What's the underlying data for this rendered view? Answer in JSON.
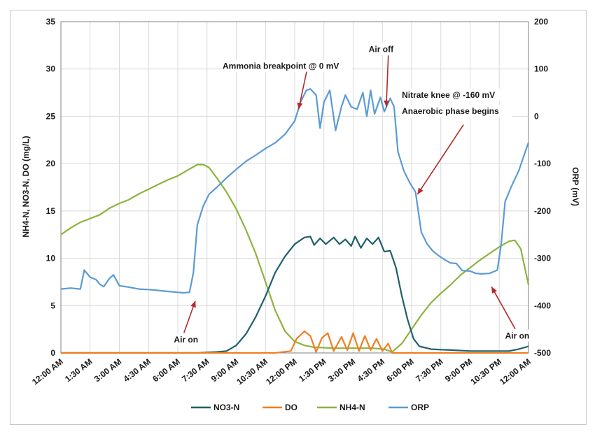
{
  "chart_data": {
    "type": "line",
    "x_unit": "hours",
    "x_ticks": [
      "12:00 AM",
      "1:30 AM",
      "3:00 AM",
      "4:30 AM",
      "6:00 AM",
      "7:30 AM",
      "9:00 AM",
      "10:30 AM",
      "12:00 PM",
      "1:30 PM",
      "3:00 PM",
      "4:30 PM",
      "6:00 PM",
      "7:30 PM",
      "9:00 PM",
      "10:30 PM",
      "12:00 AM"
    ],
    "y_left": {
      "label": "NH4-N, NO3-N, DO (mg/L)",
      "lim": [
        0,
        35
      ],
      "ticks": [
        "0",
        "5",
        "10",
        "15",
        "20",
        "25",
        "30",
        "35"
      ]
    },
    "y_right": {
      "label": "ORP (mV)",
      "lim": [
        -500,
        200
      ],
      "ticks": [
        "-500",
        "-400",
        "-300",
        "-200",
        "-100",
        "0",
        "100",
        "200"
      ]
    },
    "grid": true,
    "legend_position": "bottom",
    "series": [
      {
        "name": "NO3-N",
        "axis": "left",
        "color": "#1f5f6b",
        "points": [
          [
            0,
            0
          ],
          [
            7,
            0
          ],
          [
            8,
            0.1
          ],
          [
            8.5,
            0.2
          ],
          [
            9,
            0.8
          ],
          [
            9.5,
            2
          ],
          [
            10,
            3.8
          ],
          [
            10.5,
            6
          ],
          [
            11,
            8.5
          ],
          [
            11.5,
            10.2
          ],
          [
            12,
            11.5
          ],
          [
            12.5,
            12.2
          ],
          [
            12.8,
            12.3
          ],
          [
            13,
            11.4
          ],
          [
            13.3,
            12.1
          ],
          [
            13.6,
            11.5
          ],
          [
            14,
            12.2
          ],
          [
            14.3,
            11.5
          ],
          [
            14.6,
            12
          ],
          [
            14.9,
            11.3
          ],
          [
            15.1,
            12.3
          ],
          [
            15.4,
            11.1
          ],
          [
            15.7,
            12.1
          ],
          [
            16,
            11.5
          ],
          [
            16.3,
            12.2
          ],
          [
            16.6,
            10.7
          ],
          [
            16.9,
            10.8
          ],
          [
            17.2,
            9
          ],
          [
            17.5,
            6
          ],
          [
            17.8,
            3.5
          ],
          [
            18.1,
            1.5
          ],
          [
            18.4,
            0.7
          ],
          [
            19,
            0.4
          ],
          [
            20,
            0.3
          ],
          [
            21,
            0.2
          ],
          [
            22,
            0.2
          ],
          [
            23,
            0.2
          ],
          [
            23.5,
            0.4
          ],
          [
            24,
            0.7
          ]
        ]
      },
      {
        "name": "DO",
        "axis": "left",
        "color": "#f07f21",
        "points": [
          [
            0,
            0
          ],
          [
            11,
            0
          ],
          [
            11.8,
            0.2
          ],
          [
            12.1,
            1.5
          ],
          [
            12.5,
            2.3
          ],
          [
            12.8,
            1.8
          ],
          [
            13.1,
            0.1
          ],
          [
            13.4,
            1.6
          ],
          [
            13.7,
            2.1
          ],
          [
            14,
            0.2
          ],
          [
            14.4,
            1.7
          ],
          [
            14.7,
            0.3
          ],
          [
            15,
            2.1
          ],
          [
            15.3,
            0.2
          ],
          [
            15.6,
            1.8
          ],
          [
            15.9,
            0.3
          ],
          [
            16.2,
            1.5
          ],
          [
            16.5,
            0.2
          ],
          [
            16.8,
            1
          ],
          [
            17,
            0
          ],
          [
            24,
            0
          ]
        ]
      },
      {
        "name": "NH4-N",
        "axis": "left",
        "color": "#8db33f",
        "points": [
          [
            0,
            12.5
          ],
          [
            0.5,
            13.2
          ],
          [
            1,
            13.8
          ],
          [
            1.5,
            14.2
          ],
          [
            2,
            14.6
          ],
          [
            2.5,
            15.3
          ],
          [
            3,
            15.8
          ],
          [
            3.5,
            16.2
          ],
          [
            4,
            16.8
          ],
          [
            4.5,
            17.3
          ],
          [
            5,
            17.8
          ],
          [
            5.5,
            18.3
          ],
          [
            6,
            18.7
          ],
          [
            6.5,
            19.3
          ],
          [
            7,
            19.9
          ],
          [
            7.3,
            19.9
          ],
          [
            7.6,
            19.6
          ],
          [
            8,
            18.5
          ],
          [
            8.5,
            17
          ],
          [
            9,
            15.2
          ],
          [
            9.5,
            13
          ],
          [
            10,
            10.5
          ],
          [
            10.5,
            7.5
          ],
          [
            11,
            4.5
          ],
          [
            11.5,
            2.3
          ],
          [
            12,
            1.2
          ],
          [
            12.5,
            0.8
          ],
          [
            13,
            0.6
          ],
          [
            14,
            0.5
          ],
          [
            15,
            0.5
          ],
          [
            16,
            0.5
          ],
          [
            16.6,
            0.4
          ],
          [
            17,
            0.1
          ],
          [
            17.5,
            1
          ],
          [
            18,
            2.5
          ],
          [
            18.5,
            4
          ],
          [
            19,
            5.3
          ],
          [
            19.5,
            6.3
          ],
          [
            20,
            7.2
          ],
          [
            20.5,
            8.2
          ],
          [
            21,
            9
          ],
          [
            21.5,
            9.8
          ],
          [
            22,
            10.5
          ],
          [
            22.5,
            11.2
          ],
          [
            23,
            11.8
          ],
          [
            23.3,
            11.9
          ],
          [
            23.6,
            11
          ],
          [
            24,
            7.2
          ]
        ]
      },
      {
        "name": "ORP",
        "axis": "right",
        "color": "#5b9bd5",
        "points": [
          [
            0,
            -365
          ],
          [
            0.5,
            -363
          ],
          [
            1,
            -365
          ],
          [
            1.2,
            -325
          ],
          [
            1.5,
            -340
          ],
          [
            1.8,
            -345
          ],
          [
            2,
            -355
          ],
          [
            2.2,
            -360
          ],
          [
            2.5,
            -342
          ],
          [
            2.7,
            -335
          ],
          [
            3,
            -358
          ],
          [
            3.5,
            -361
          ],
          [
            4,
            -365
          ],
          [
            4.5,
            -366
          ],
          [
            5,
            -368
          ],
          [
            5.5,
            -370
          ],
          [
            6,
            -372
          ],
          [
            6.3,
            -373
          ],
          [
            6.6,
            -372
          ],
          [
            6.8,
            -330
          ],
          [
            7,
            -230
          ],
          [
            7.3,
            -190
          ],
          [
            7.6,
            -165
          ],
          [
            8,
            -150
          ],
          [
            8.5,
            -130
          ],
          [
            9,
            -112
          ],
          [
            9.5,
            -95
          ],
          [
            10,
            -82
          ],
          [
            10.5,
            -68
          ],
          [
            11,
            -56
          ],
          [
            11.5,
            -38
          ],
          [
            12,
            -10
          ],
          [
            12.3,
            30
          ],
          [
            12.6,
            55
          ],
          [
            12.8,
            58
          ],
          [
            13.1,
            45
          ],
          [
            13.3,
            -25
          ],
          [
            13.5,
            30
          ],
          [
            13.8,
            55
          ],
          [
            14.1,
            -30
          ],
          [
            14.4,
            20
          ],
          [
            14.6,
            45
          ],
          [
            14.9,
            20
          ],
          [
            15.2,
            15
          ],
          [
            15.5,
            50
          ],
          [
            15.7,
            0
          ],
          [
            15.9,
            55
          ],
          [
            16.1,
            5
          ],
          [
            16.4,
            40
          ],
          [
            16.6,
            10
          ],
          [
            16.9,
            38
          ],
          [
            17.1,
            20
          ],
          [
            17.3,
            -75
          ],
          [
            17.6,
            -115
          ],
          [
            17.9,
            -140
          ],
          [
            18.2,
            -160
          ],
          [
            18.5,
            -245
          ],
          [
            18.8,
            -270
          ],
          [
            19.1,
            -285
          ],
          [
            19.4,
            -295
          ],
          [
            19.7,
            -303
          ],
          [
            20,
            -310
          ],
          [
            20.3,
            -311
          ],
          [
            20.6,
            -326
          ],
          [
            21,
            -327
          ],
          [
            21.3,
            -332
          ],
          [
            21.6,
            -333
          ],
          [
            22,
            -332
          ],
          [
            22.4,
            -325
          ],
          [
            22.6,
            -270
          ],
          [
            22.8,
            -180
          ],
          [
            23.1,
            -150
          ],
          [
            23.5,
            -115
          ],
          [
            24,
            -55
          ]
        ]
      }
    ],
    "annotations": [
      {
        "text": "Ammonia breakpoint @  0 mV",
        "x": 8.3,
        "y_right": 100,
        "arrow_to": [
          12.2,
          15
        ]
      },
      {
        "text": "Air off",
        "x": 15.8,
        "y_right": 136,
        "arrow_to": [
          16.7,
          20
        ]
      },
      {
        "text": "Nitrate knee @ -160 mV",
        "x": 17.5,
        "y_right": 39,
        "arrow_to": [
          18.3,
          -165
        ]
      },
      {
        "text": "Anaerobic phase begins",
        "x": 17.5,
        "y_right": 5
      },
      {
        "text": "Air on",
        "x": 5.8,
        "y_right": -478,
        "arrow_to": [
          6.9,
          -390
        ]
      },
      {
        "text": "Air on",
        "x": 22.8,
        "y_right": -470,
        "arrow_to": [
          22.1,
          -360
        ]
      }
    ]
  }
}
